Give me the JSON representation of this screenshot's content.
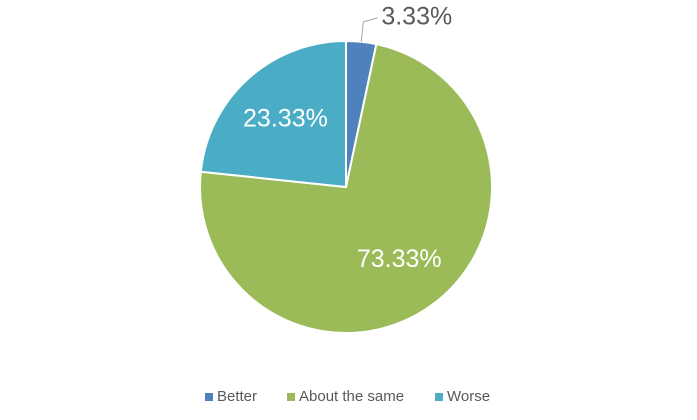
{
  "chart_data": {
    "type": "pie",
    "categories": [
      "Better",
      "About the same",
      "Worse"
    ],
    "values": [
      3.33,
      73.33,
      23.33
    ],
    "value_labels": [
      "3.33%",
      "73.33%",
      "23.33%"
    ],
    "colors": [
      "#4f81bd",
      "#9bbb59",
      "#4bacc6"
    ],
    "legend": "bottom"
  }
}
